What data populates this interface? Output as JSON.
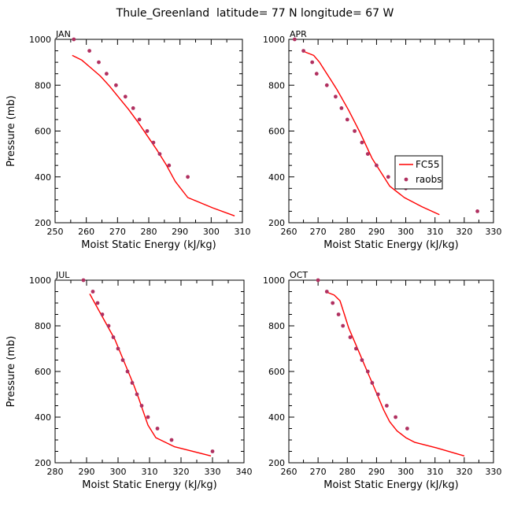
{
  "figure_title": "Thule_Greenland  latitude= 77 N longitude= 67 W",
  "colors": {
    "model": "#ff0000",
    "raobs": "#b03060"
  },
  "legend": {
    "placement": "inside APR panel, middle-right",
    "model_label": "FC55",
    "raobs_label": "raobs"
  },
  "chart_data": [
    {
      "type": "line",
      "panel": "JAN",
      "xlabel": "Moist Static Energy (kJ/kg)",
      "ylabel": "Pressure (mb)",
      "xlim": [
        250,
        310
      ],
      "ylim": [
        1000,
        200
      ],
      "x_major_step": 10,
      "x_minor_step": 5,
      "y_major_step": 200,
      "y_minor_step": 50,
      "x_ticks": [
        "250",
        "260",
        "270",
        "280",
        "290",
        "300",
        "310"
      ],
      "y_ticks": [
        "200",
        "400",
        "600",
        "800",
        "1000"
      ],
      "series": [
        {
          "name": "FC55",
          "kind": "line",
          "color": "#ff0000",
          "x": [
            255.5,
            258.5,
            261.5,
            264.5,
            267.5,
            270.5,
            273.5,
            276.5,
            279.5,
            282.5,
            285.5,
            288.5,
            292.5,
            300.5,
            307.5
          ],
          "y": [
            930,
            910,
            875,
            840,
            795,
            745,
            695,
            640,
            580,
            520,
            455,
            380,
            310,
            265,
            230
          ]
        },
        {
          "name": "raobs",
          "kind": "scatter",
          "color": "#b03060",
          "x": [
            256,
            261,
            264,
            266.5,
            269.5,
            272.5,
            275,
            277,
            279.5,
            281.5,
            283.5,
            286.5,
            292.5
          ],
          "y": [
            1000,
            950,
            900,
            850,
            800,
            750,
            700,
            650,
            600,
            550,
            500,
            450,
            400
          ]
        }
      ]
    },
    {
      "type": "line",
      "panel": "APR",
      "xlabel": "Moist Static Energy (kJ/kg)",
      "ylabel": "",
      "xlim": [
        260,
        330
      ],
      "ylim": [
        1000,
        200
      ],
      "x_major_step": 10,
      "x_minor_step": 5,
      "y_major_step": 200,
      "y_minor_step": 50,
      "x_ticks": [
        "260",
        "270",
        "280",
        "290",
        "300",
        "310",
        "320",
        "330"
      ],
      "y_ticks": [
        "200",
        "400",
        "600",
        "800",
        "1000"
      ],
      "series": [
        {
          "name": "FC55",
          "kind": "line",
          "color": "#ff0000",
          "x": [
            265.5,
            268.5,
            270.5,
            272.5,
            274.5,
            276.5,
            278.5,
            280.5,
            282.5,
            284.5,
            286.5,
            288.5,
            291.5,
            294.5,
            299.5,
            305.5,
            311.5
          ],
          "y": [
            945,
            930,
            900,
            860,
            820,
            780,
            735,
            690,
            640,
            590,
            535,
            480,
            420,
            360,
            310,
            270,
            235
          ]
        },
        {
          "name": "raobs",
          "kind": "scatter",
          "color": "#b03060",
          "x": [
            262,
            265,
            268,
            269.5,
            273,
            276,
            278,
            280,
            282.5,
            285,
            287,
            290,
            294,
            300,
            324.5
          ],
          "y": [
            1000,
            950,
            900,
            850,
            800,
            750,
            700,
            650,
            600,
            550,
            500,
            450,
            400,
            350,
            250
          ]
        }
      ]
    },
    {
      "type": "line",
      "panel": "JUL",
      "xlabel": "Moist Static Energy (kJ/kg)",
      "ylabel": "Pressure (mb)",
      "xlim": [
        280,
        340
      ],
      "ylim": [
        1000,
        200
      ],
      "x_major_step": 10,
      "x_minor_step": 5,
      "y_major_step": 200,
      "y_minor_step": 50,
      "x_ticks": [
        "280",
        "290",
        "300",
        "310",
        "320",
        "330",
        "340"
      ],
      "y_ticks": [
        "200",
        "400",
        "600",
        "800",
        "1000"
      ],
      "series": [
        {
          "name": "FC55",
          "kind": "line",
          "color": "#ff0000",
          "x": [
            291,
            293,
            295,
            297,
            299,
            300.5,
            302,
            303.5,
            305,
            306.5,
            308,
            309.5,
            312,
            318,
            329.5
          ],
          "y": [
            940,
            890,
            840,
            790,
            740,
            690,
            640,
            590,
            540,
            485,
            425,
            365,
            310,
            270,
            230
          ]
        },
        {
          "name": "raobs",
          "kind": "scatter",
          "color": "#b03060",
          "x": [
            289,
            292,
            293.5,
            295,
            297,
            298.5,
            300,
            301.5,
            303,
            304.5,
            306,
            307.5,
            309.5,
            312.5,
            317,
            330
          ],
          "y": [
            1000,
            950,
            900,
            850,
            800,
            750,
            700,
            650,
            600,
            550,
            500,
            450,
            400,
            350,
            300,
            250
          ]
        }
      ]
    },
    {
      "type": "line",
      "panel": "OCT",
      "xlabel": "Moist Static Energy (kJ/kg)",
      "ylabel": "",
      "xlim": [
        260,
        330
      ],
      "ylim": [
        1000,
        200
      ],
      "x_major_step": 10,
      "x_minor_step": 5,
      "y_major_step": 200,
      "y_minor_step": 50,
      "x_ticks": [
        "260",
        "270",
        "280",
        "290",
        "300",
        "310",
        "320",
        "330"
      ],
      "y_ticks": [
        "200",
        "400",
        "600",
        "800",
        "1000"
      ],
      "series": [
        {
          "name": "FC55",
          "kind": "line",
          "color": "#ff0000",
          "x": [
            272.5,
            275.5,
            277.5,
            279,
            280.5,
            282.5,
            284.5,
            286.5,
            288.5,
            290.5,
            292.5,
            294.5,
            297,
            300,
            303,
            310.5,
            320
          ],
          "y": [
            950,
            935,
            910,
            850,
            790,
            730,
            670,
            610,
            550,
            490,
            430,
            380,
            340,
            310,
            290,
            265,
            230
          ]
        },
        {
          "name": "raobs",
          "kind": "scatter",
          "color": "#b03060",
          "x": [
            270,
            273,
            275,
            277,
            278.5,
            281,
            283,
            285,
            287,
            288.5,
            290.5,
            293.5,
            296.5,
            300.5
          ],
          "y": [
            1000,
            950,
            900,
            850,
            800,
            750,
            700,
            650,
            600,
            550,
            500,
            450,
            400,
            350
          ]
        }
      ]
    }
  ]
}
